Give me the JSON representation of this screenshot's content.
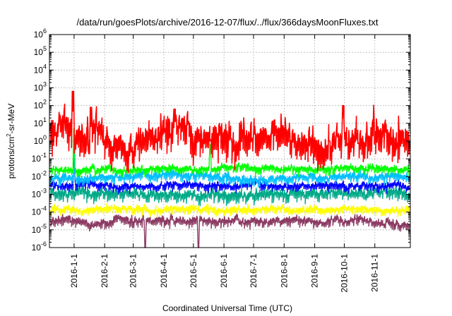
{
  "chart_data": {
    "type": "line",
    "title": "/data/run/goesPlots/archive/2016-12-07/flux/../flux/366daysMoonFluxes.txt",
    "xlabel": "Coordinated Universal Time (UTC)",
    "ylabel_parts": [
      "protons/cm",
      "2",
      "-sr-MeV"
    ],
    "yscale": "log",
    "ylim_exp": [
      -6,
      6
    ],
    "y_ticks": [
      {
        "base": "10",
        "exp": "-6"
      },
      {
        "base": "10",
        "exp": "-5"
      },
      {
        "base": "10",
        "exp": "-4"
      },
      {
        "base": "10",
        "exp": "-3"
      },
      {
        "base": "10",
        "exp": "-2"
      },
      {
        "base": "10",
        "exp": "-1"
      },
      {
        "base": "10",
        "exp": "0"
      },
      {
        "base": "10",
        "exp": "1"
      },
      {
        "base": "10",
        "exp": "2"
      },
      {
        "base": "10",
        "exp": "3"
      },
      {
        "base": "10",
        "exp": "4"
      },
      {
        "base": "10",
        "exp": "5"
      },
      {
        "base": "10",
        "exp": "6"
      }
    ],
    "xlim": [
      "2015-12-07",
      "2016-12-07"
    ],
    "x_ticks": [
      "2016-1-1",
      "2016-2-1",
      "2016-3-1",
      "2016-4-1",
      "2016-5-1",
      "2016-6-1",
      "2016-7-1",
      "2016-8-1",
      "2016-9-1",
      "2016-10-1",
      "2016-11-1"
    ],
    "x_tick_dates": [
      "2016-01-01",
      "2016-02-01",
      "2016-03-01",
      "2016-04-01",
      "2016-05-01",
      "2016-06-01",
      "2016-07-01",
      "2016-08-01",
      "2016-09-01",
      "2016-10-01",
      "2016-11-01"
    ],
    "grid": true,
    "series": [
      {
        "color": "#8b3a62",
        "level_exp": -4.45,
        "spread": 0.14,
        "spikes": [
          {
            "date": "2016-03-13",
            "exp": -6
          },
          {
            "date": "2016-05-06",
            "exp": -6
          }
        ]
      },
      {
        "color": "#ffff00",
        "level_exp": -3.8,
        "spread": 0.12,
        "spikes": []
      },
      {
        "color": "#00aa88",
        "level_exp": -2.85,
        "spread": 0.18,
        "spikes": []
      },
      {
        "color": "#0000ff",
        "level_exp": -2.4,
        "spread": 0.12,
        "spikes": [
          {
            "date": "2016-01-01",
            "exp": -0.8
          }
        ]
      },
      {
        "color": "#00bfff",
        "level_exp": -1.95,
        "spread": 0.14,
        "spikes": [
          {
            "date": "2016-01-01",
            "exp": -0.4
          }
        ]
      },
      {
        "color": "#00ff00",
        "level_exp": -1.5,
        "spread": 0.12,
        "spikes": [
          {
            "date": "2016-01-01",
            "exp": 0.7
          },
          {
            "date": "2016-05-18",
            "exp": -0.2
          }
        ]
      },
      {
        "color": "#ff0000",
        "level_exp": 0.4,
        "spread": 0.45,
        "spikes": [
          {
            "date": "2015-12-31",
            "exp": 2.8
          },
          {
            "date": "2016-01-18",
            "exp": 1.9
          },
          {
            "date": "2016-04-12",
            "exp": 1.8
          },
          {
            "date": "2016-09-30",
            "exp": 2.0
          }
        ]
      }
    ]
  }
}
